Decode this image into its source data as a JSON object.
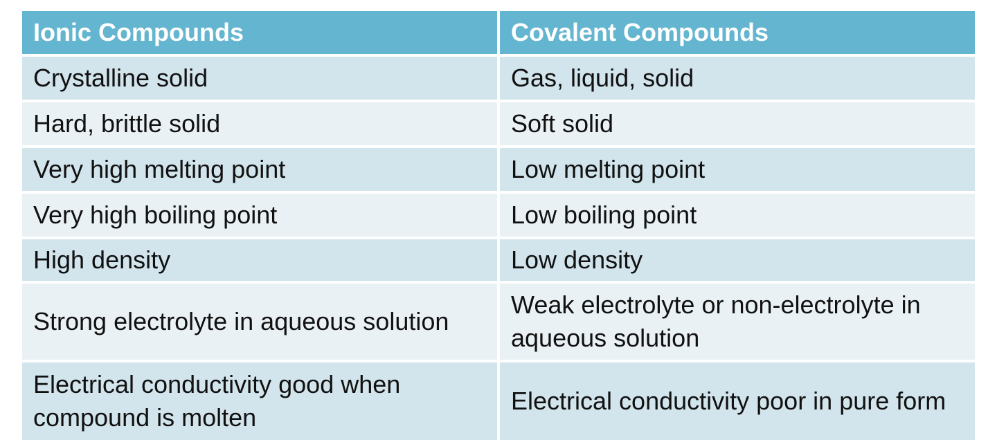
{
  "table": {
    "header": [
      "Ionic Compounds",
      "Covalent Compounds"
    ],
    "rows": [
      [
        "Crystalline solid",
        "Gas, liquid, solid"
      ],
      [
        "Hard, brittle solid",
        "Soft solid"
      ],
      [
        "Very high melting point",
        "Low melting point"
      ],
      [
        "Very high boiling point",
        "Low boiling point"
      ],
      [
        "High density",
        "Low density"
      ],
      [
        "Strong electrolyte in aqueous solution",
        "Weak electrolyte or non-electrolyte in aqueous solution"
      ],
      [
        "Electrical conductivity good when compound is molten",
        "Electrical conductivity poor in pure form"
      ]
    ]
  }
}
